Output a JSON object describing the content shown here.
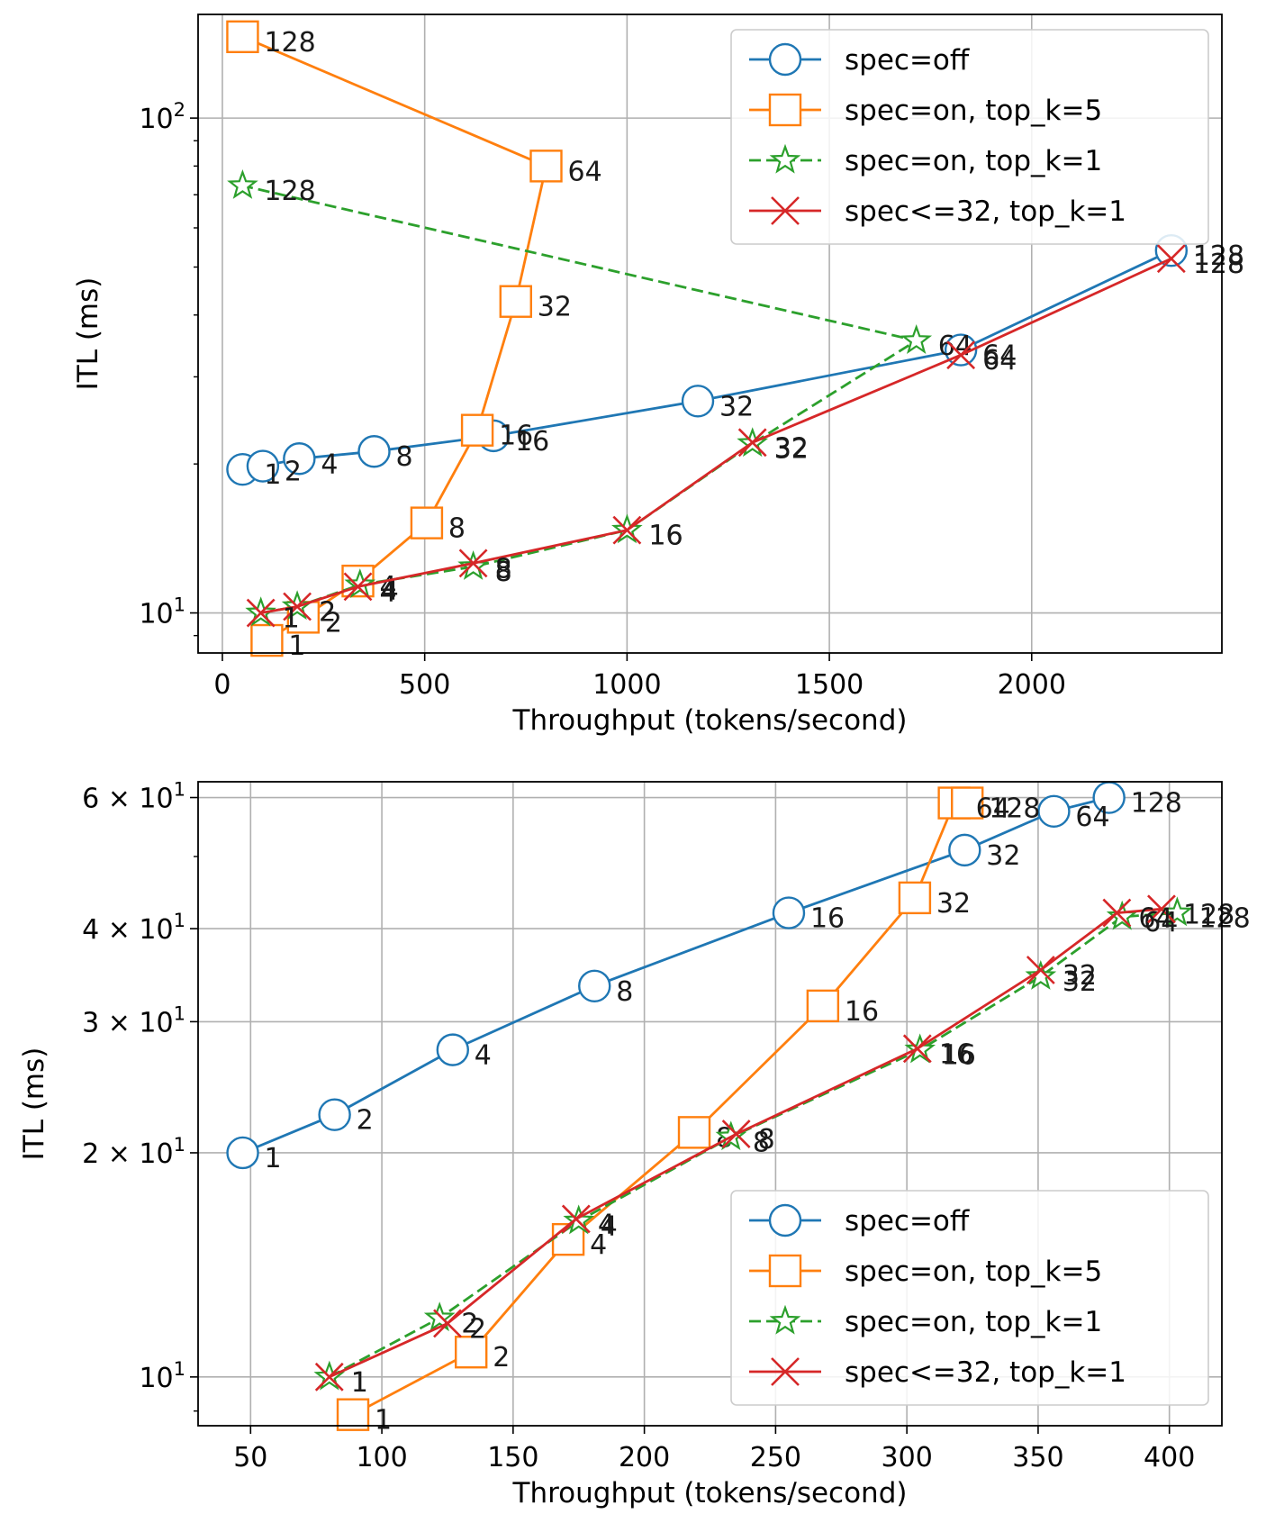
{
  "chart_data": [
    {
      "type": "line",
      "x_scale": "linear",
      "y_scale": "log",
      "xlabel": "Throughput (tokens/second)",
      "ylabel": "ITL (ms)",
      "xlim": [
        -60,
        2470
      ],
      "ylim": [
        8.3,
        162
      ],
      "x_ticks": [
        0,
        500,
        1000,
        1500,
        2000
      ],
      "x_tick_labels": [
        "0",
        "500",
        "1000",
        "1500",
        "2000"
      ],
      "y_major_ticks": [
        10,
        100
      ],
      "y_tick_labels": [
        {
          "base": "10",
          "exp": "1"
        },
        {
          "base": "10",
          "exp": "2"
        }
      ],
      "grid": true,
      "legend_position": "upper right",
      "series": [
        {
          "name": "spec=off",
          "color": "#1f77b4",
          "marker": "circle",
          "dash": "solid",
          "x": [
            50,
            100,
            190,
            375,
            670,
            1175,
            1825,
            2345
          ],
          "y": [
            19.5,
            19.8,
            20.5,
            21.2,
            22.8,
            26.8,
            34,
            54
          ],
          "labels": [
            "1",
            "2",
            "4",
            "8",
            "16",
            "32",
            "64",
            "128"
          ]
        },
        {
          "name": "spec=on, top_k=5",
          "color": "#ff7f0e",
          "marker": "square",
          "dash": "solid",
          "x": [
            110,
            200,
            335,
            505,
            630,
            725,
            800,
            50
          ],
          "y": [
            8.8,
            9.8,
            11.6,
            15.2,
            23.4,
            42.6,
            80,
            146
          ],
          "labels": [
            "1",
            "2",
            "4",
            "8",
            "16",
            "32",
            "64",
            "128"
          ]
        },
        {
          "name": "spec=on, top_k=1",
          "color": "#2ca02c",
          "marker": "star",
          "dash": "dashed",
          "x": [
            95,
            185,
            340,
            620,
            1000,
            1310,
            1715,
            50
          ],
          "y": [
            10,
            10.3,
            11.4,
            12.4,
            14.7,
            22,
            35.5,
            73
          ],
          "labels": [
            "1",
            "2",
            "4",
            "8",
            "16",
            "32",
            "64",
            "128"
          ]
        },
        {
          "name": "spec<=32, top_k=1",
          "color": "#d62728",
          "marker": "x",
          "dash": "solid",
          "x": [
            95,
            185,
            335,
            620,
            1000,
            1310,
            1825,
            2345
          ],
          "y": [
            10,
            10.3,
            11.3,
            12.6,
            14.7,
            22.1,
            33.2,
            52
          ],
          "labels": [
            "1",
            "2",
            "4",
            "8",
            "16",
            "32",
            "64",
            "128"
          ]
        }
      ]
    },
    {
      "type": "line",
      "x_scale": "linear",
      "y_scale": "log",
      "xlabel": "Throughput (tokens/second)",
      "ylabel": "ITL (ms)",
      "xlim": [
        30,
        420
      ],
      "ylim": [
        8.6,
        63
      ],
      "x_ticks": [
        50,
        100,
        150,
        200,
        250,
        300,
        350,
        400
      ],
      "x_tick_labels": [
        "50",
        "100",
        "150",
        "200",
        "250",
        "300",
        "350",
        "400"
      ],
      "y_major_ticks": [
        10,
        20,
        30,
        40,
        60
      ],
      "y_tick_labels": [
        {
          "base": "10",
          "exp": "1"
        },
        {
          "base": "2 × 10",
          "exp": "1"
        },
        {
          "base": "3 × 10",
          "exp": "1"
        },
        {
          "base": "4 × 10",
          "exp": "1"
        },
        {
          "base": "6 × 10",
          "exp": "1"
        }
      ],
      "grid": true,
      "legend_position": "lower right",
      "series": [
        {
          "name": "spec=off",
          "color": "#1f77b4",
          "marker": "circle",
          "dash": "solid",
          "x": [
            47,
            82,
            127,
            181,
            255,
            322,
            356,
            377
          ],
          "y": [
            20,
            22.5,
            27.5,
            33.5,
            42,
            51,
            57.5,
            60
          ],
          "labels": [
            "1",
            "2",
            "4",
            "8",
            "16",
            "32",
            "64",
            "128"
          ]
        },
        {
          "name": "spec=on, top_k=5",
          "color": "#ff7f0e",
          "marker": "square",
          "dash": "solid",
          "x": [
            89,
            134,
            171,
            219,
            268,
            303,
            318,
            323
          ],
          "y": [
            8.9,
            10.8,
            15.3,
            21.3,
            31.5,
            44,
            59,
            59
          ],
          "labels": [
            "1",
            "2",
            "4",
            "8",
            "16",
            "32",
            "64",
            "128"
          ]
        },
        {
          "name": "spec=on, top_k=1",
          "color": "#2ca02c",
          "marker": "star",
          "dash": "dashed",
          "x": [
            80,
            122,
            175,
            233,
            305,
            351,
            382,
            403
          ],
          "y": [
            10,
            12,
            16.2,
            21,
            27.5,
            34.5,
            41.5,
            42
          ],
          "labels": [
            "1",
            "2",
            "4",
            "8",
            "16",
            "32",
            "64",
            "128"
          ]
        },
        {
          "name": "spec<=32, top_k=1",
          "color": "#d62728",
          "marker": "x",
          "dash": "solid",
          "x": [
            80,
            125,
            174,
            235,
            304,
            351,
            380,
            397
          ],
          "y": [
            10,
            11.8,
            16.3,
            21.2,
            27.6,
            35.2,
            42,
            42.5
          ],
          "labels": [
            "1",
            "2",
            "4",
            "8",
            "16",
            "32",
            "64",
            "128"
          ]
        }
      ]
    }
  ]
}
